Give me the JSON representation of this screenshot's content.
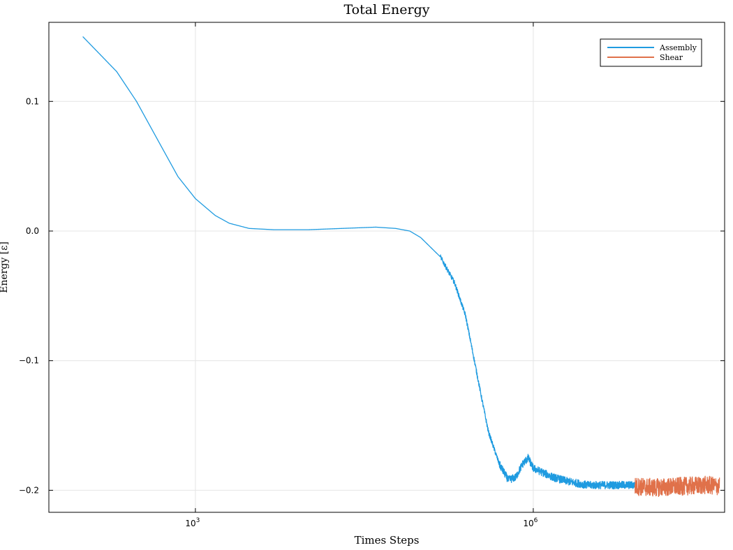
{
  "chart_data": {
    "type": "line",
    "title": "Total Energy",
    "xlabel": "Times Steps",
    "ylabel": "Energy [ε]",
    "x_scale": "log10",
    "xlim": [
      50,
      50000000
    ],
    "ylim": [
      -0.217,
      0.161
    ],
    "x_ticks": [
      {
        "value": 1000,
        "base": "10",
        "exp": "3"
      },
      {
        "value": 1000000,
        "base": "10",
        "exp": "6"
      }
    ],
    "y_ticks": [
      {
        "value": 0.1,
        "label": "0.1"
      },
      {
        "value": 0.0,
        "label": "0.0"
      },
      {
        "value": -0.1,
        "label": "−0.1"
      },
      {
        "value": -0.2,
        "label": "−0.2"
      }
    ],
    "grid": true,
    "legend_position": "top-right",
    "series": [
      {
        "name": "Assembly",
        "color": "#1f9be0",
        "noise_amplitude": 0.003,
        "points": [
          [
            100,
            0.15
          ],
          [
            200,
            0.123
          ],
          [
            300,
            0.1
          ],
          [
            500,
            0.065
          ],
          [
            700,
            0.042
          ],
          [
            1000,
            0.025
          ],
          [
            1500,
            0.012
          ],
          [
            2000,
            0.006
          ],
          [
            3000,
            0.002
          ],
          [
            5000,
            0.001
          ],
          [
            10000,
            0.001
          ],
          [
            20000,
            0.002
          ],
          [
            40000,
            0.003
          ],
          [
            60000,
            0.002
          ],
          [
            80000,
            0.0
          ],
          [
            100000,
            -0.005
          ],
          [
            150000,
            -0.02
          ],
          [
            200000,
            -0.04
          ],
          [
            250000,
            -0.065
          ],
          [
            300000,
            -0.1
          ],
          [
            350000,
            -0.13
          ],
          [
            400000,
            -0.155
          ],
          [
            500000,
            -0.18
          ],
          [
            600000,
            -0.192
          ],
          [
            700000,
            -0.19
          ],
          [
            800000,
            -0.18
          ],
          [
            900000,
            -0.175
          ],
          [
            1000000,
            -0.183
          ],
          [
            1500000,
            -0.19
          ],
          [
            2000000,
            -0.193
          ],
          [
            3000000,
            -0.196
          ],
          [
            5000000,
            -0.196
          ],
          [
            8000000,
            -0.196
          ]
        ]
      },
      {
        "name": "Shear",
        "color": "#e0714a",
        "noise_amplitude": 0.007,
        "points": [
          [
            8000000,
            -0.197
          ],
          [
            12000000,
            -0.198
          ],
          [
            20000000,
            -0.197
          ],
          [
            35000000,
            -0.196
          ],
          [
            45000000,
            -0.197
          ]
        ]
      }
    ]
  }
}
